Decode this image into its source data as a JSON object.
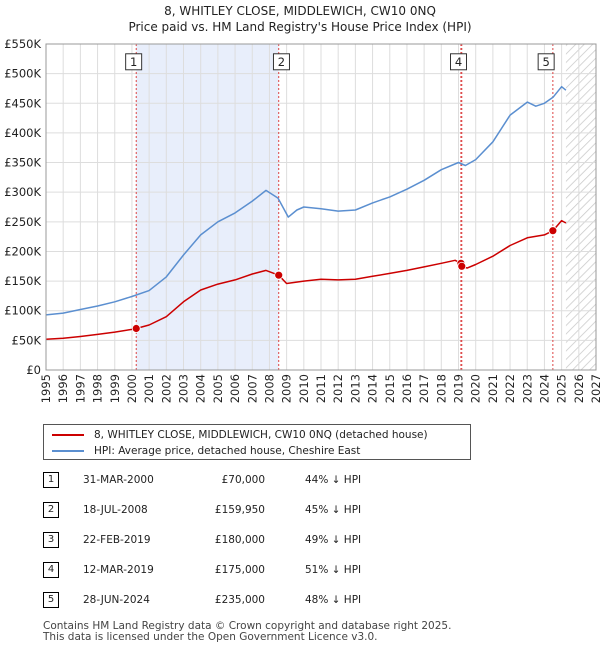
{
  "chart_data": {
    "type": "line",
    "title": "8, WHITLEY CLOSE, MIDDLEWICH, CW10 0NQ",
    "subtitle": "Price paid vs. HM Land Registry's House Price Index (HPI)",
    "xlim": [
      1995,
      2027
    ],
    "ylim": [
      0,
      550000
    ],
    "x_ticks": [
      "1995",
      "1996",
      "1997",
      "1998",
      "1999",
      "2000",
      "2001",
      "2002",
      "2003",
      "2004",
      "2005",
      "2006",
      "2007",
      "2008",
      "2009",
      "2010",
      "2011",
      "2012",
      "2013",
      "2014",
      "2015",
      "2016",
      "2017",
      "2018",
      "2019",
      "2020",
      "2021",
      "2022",
      "2023",
      "2024",
      "2025",
      "2026",
      "2027"
    ],
    "y_ticks": [
      {
        "value": 0,
        "label": "£0"
      },
      {
        "value": 50000,
        "label": "£50K"
      },
      {
        "value": 100000,
        "label": "£100K"
      },
      {
        "value": 150000,
        "label": "£150K"
      },
      {
        "value": 200000,
        "label": "£200K"
      },
      {
        "value": 250000,
        "label": "£250K"
      },
      {
        "value": 300000,
        "label": "£300K"
      },
      {
        "value": 350000,
        "label": "£350K"
      },
      {
        "value": 400000,
        "label": "£400K"
      },
      {
        "value": 450000,
        "label": "£450K"
      },
      {
        "value": 500000,
        "label": "£500K"
      },
      {
        "value": 550000,
        "label": "£550K"
      }
    ],
    "ownership_shading": [
      2000.25,
      2008.54
    ],
    "forecast_start": 2025.25,
    "series": [
      {
        "name": "8, WHITLEY CLOSE, MIDDLEWICH, CW10 0NQ (detached house)",
        "color": "#cc0000",
        "points": [
          [
            1995.0,
            52000
          ],
          [
            1996.0,
            53500
          ],
          [
            1997.0,
            56500
          ],
          [
            1998.0,
            60000
          ],
          [
            1999.0,
            64000
          ],
          [
            2000.0,
            68500
          ],
          [
            2000.25,
            70000
          ],
          [
            2001.0,
            76000
          ],
          [
            2002.0,
            90000
          ],
          [
            2003.0,
            115000
          ],
          [
            2004.0,
            135000
          ],
          [
            2005.0,
            145000
          ],
          [
            2006.0,
            152000
          ],
          [
            2007.0,
            162000
          ],
          [
            2007.8,
            168000
          ],
          [
            2008.54,
            159950
          ],
          [
            2009.0,
            146000
          ],
          [
            2010.0,
            150000
          ],
          [
            2011.0,
            153000
          ],
          [
            2012.0,
            152000
          ],
          [
            2013.0,
            153000
          ],
          [
            2014.0,
            158000
          ],
          [
            2015.0,
            163000
          ],
          [
            2016.0,
            168000
          ],
          [
            2017.0,
            174000
          ],
          [
            2018.0,
            180000
          ],
          [
            2018.8,
            185000
          ],
          [
            2019.15,
            180000
          ],
          [
            2019.2,
            175000
          ],
          [
            2019.5,
            172000
          ],
          [
            2020.0,
            178000
          ],
          [
            2021.0,
            192000
          ],
          [
            2022.0,
            210000
          ],
          [
            2023.0,
            223000
          ],
          [
            2024.0,
            228000
          ],
          [
            2024.49,
            235000
          ],
          [
            2025.0,
            252000
          ],
          [
            2025.25,
            248000
          ]
        ]
      },
      {
        "name": "HPI: Average price, detached house, Cheshire East",
        "color": "#5b8fd0",
        "points": [
          [
            1995.0,
            93000
          ],
          [
            1996.0,
            96000
          ],
          [
            1997.0,
            102000
          ],
          [
            1998.0,
            108000
          ],
          [
            1999.0,
            115000
          ],
          [
            2000.0,
            124000
          ],
          [
            2001.0,
            134000
          ],
          [
            2002.0,
            157000
          ],
          [
            2003.0,
            194000
          ],
          [
            2004.0,
            228000
          ],
          [
            2005.0,
            250000
          ],
          [
            2006.0,
            265000
          ],
          [
            2007.0,
            285000
          ],
          [
            2007.8,
            303000
          ],
          [
            2008.5,
            290000
          ],
          [
            2009.1,
            258000
          ],
          [
            2009.6,
            270000
          ],
          [
            2010.0,
            275000
          ],
          [
            2011.0,
            272000
          ],
          [
            2012.0,
            268000
          ],
          [
            2013.0,
            270000
          ],
          [
            2014.0,
            282000
          ],
          [
            2015.0,
            292000
          ],
          [
            2016.0,
            305000
          ],
          [
            2017.0,
            320000
          ],
          [
            2018.0,
            338000
          ],
          [
            2019.0,
            350000
          ],
          [
            2019.4,
            345000
          ],
          [
            2020.0,
            355000
          ],
          [
            2021.0,
            385000
          ],
          [
            2022.0,
            430000
          ],
          [
            2023.0,
            452000
          ],
          [
            2023.5,
            445000
          ],
          [
            2024.0,
            450000
          ],
          [
            2024.5,
            460000
          ],
          [
            2025.0,
            478000
          ],
          [
            2025.25,
            472000
          ]
        ]
      }
    ],
    "sales": [
      {
        "label": "1",
        "x": 2000.25,
        "price": 70000
      },
      {
        "label": "2",
        "x": 2008.54,
        "price": 159950
      },
      {
        "label": "3",
        "x": 2019.14,
        "price": 180000
      },
      {
        "label": "4",
        "x": 2019.19,
        "price": 175000
      },
      {
        "label": "5",
        "x": 2024.49,
        "price": 235000
      }
    ],
    "marker_boxes": [
      {
        "label": "1",
        "x": 2000.1
      },
      {
        "label": "2",
        "x": 2008.7
      },
      {
        "label": "4",
        "x": 2019.0
      },
      {
        "label": "5",
        "x": 2024.1
      }
    ]
  },
  "transactions": [
    {
      "num": "1",
      "date": "31-MAR-2000",
      "price": "£70,000",
      "hpi": "44% ↓ HPI"
    },
    {
      "num": "2",
      "date": "18-JUL-2008",
      "price": "£159,950",
      "hpi": "45% ↓ HPI"
    },
    {
      "num": "3",
      "date": "22-FEB-2019",
      "price": "£180,000",
      "hpi": "49% ↓ HPI"
    },
    {
      "num": "4",
      "date": "12-MAR-2019",
      "price": "£175,000",
      "hpi": "51% ↓ HPI"
    },
    {
      "num": "5",
      "date": "28-JUN-2024",
      "price": "£235,000",
      "hpi": "48% ↓ HPI"
    }
  ],
  "footer": {
    "line1": "Contains HM Land Registry data © Crown copyright and database right 2025.",
    "line2": "This data is licensed under the Open Government Licence v3.0."
  }
}
